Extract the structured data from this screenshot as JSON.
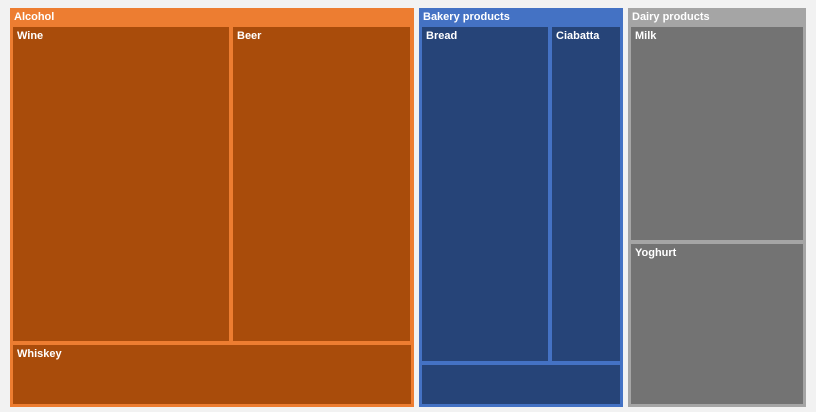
{
  "chart_data": {
    "type": "treemap",
    "groups": [
      {
        "name": "Alcohol",
        "header_color": "#ed7d31",
        "cell_color": "#a94c0b",
        "items": [
          {
            "label": "Wine",
            "value": 22
          },
          {
            "label": "Beer",
            "value": 18
          },
          {
            "label": "Whiskey",
            "value": 7.5
          }
        ]
      },
      {
        "name": "Bakery products",
        "header_color": "#4472c4",
        "cell_color": "#264478",
        "items": [
          {
            "label": "Bread",
            "value": 14
          },
          {
            "label": "Ciabatta",
            "value": 7.5
          },
          {
            "label": "",
            "value": 2.5
          }
        ]
      },
      {
        "name": "Dairy products",
        "header_color": "#a5a5a5",
        "cell_color": "#737373",
        "items": [
          {
            "label": "Milk",
            "value": 12
          },
          {
            "label": "Yoghurt",
            "value": 9
          }
        ]
      }
    ]
  }
}
